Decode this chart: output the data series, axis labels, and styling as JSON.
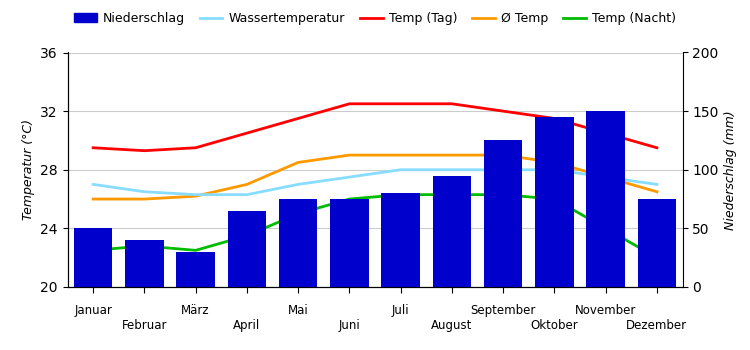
{
  "months": [
    "Januar",
    "Februar",
    "März",
    "April",
    "Mai",
    "Juni",
    "Juli",
    "August",
    "September",
    "Oktober",
    "November",
    "Dezember"
  ],
  "bar_values": [
    50,
    40,
    30,
    65,
    75,
    75,
    80,
    95,
    125,
    145,
    150,
    75
  ],
  "temp_day": [
    29.5,
    29.3,
    29.5,
    30.5,
    31.5,
    32.5,
    32.5,
    32.5,
    32.0,
    31.5,
    30.5,
    29.5
  ],
  "temp_avg": [
    26.0,
    26.0,
    26.2,
    27.0,
    28.5,
    29.0,
    29.0,
    29.0,
    29.0,
    28.5,
    27.5,
    26.5
  ],
  "temp_night": [
    22.5,
    22.8,
    22.5,
    23.5,
    25.0,
    26.0,
    26.3,
    26.3,
    26.3,
    26.0,
    24.0,
    22.0
  ],
  "temp_water": [
    27.0,
    26.5,
    26.3,
    26.3,
    27.0,
    27.5,
    28.0,
    28.0,
    28.0,
    28.0,
    27.5,
    27.0
  ],
  "bar_color": "#0000cc",
  "color_day": "#ff0000",
  "color_avg": "#ff9900",
  "color_night": "#00bb00",
  "color_water": "#88ddff",
  "temp_ylim": [
    20,
    36
  ],
  "precip_ylim": [
    0,
    200
  ],
  "precip_yticks": [
    0,
    50,
    100,
    150,
    200
  ],
  "temp_yticks": [
    20,
    24,
    28,
    32,
    36
  ],
  "ylabel_left": "Temperatur (°C)",
  "ylabel_right": "Niederschlag (mm)",
  "legend_items": [
    "Niederschlag",
    "Wassertemperatur",
    "Temp (Tag)",
    "Ø Temp",
    "Temp (Nacht)"
  ],
  "background_color": "#ffffff",
  "grid_color": "#cccccc"
}
